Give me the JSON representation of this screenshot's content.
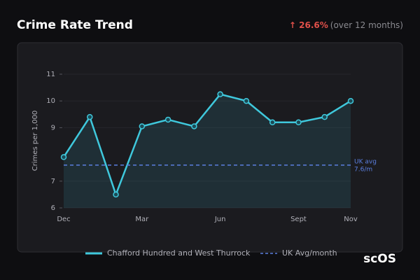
{
  "chart_data": {
    "type": "line",
    "title": "Crime Rate Trend",
    "change": "↑ 26.6%",
    "change_note": "(over 12 months)",
    "y_label": "Crimes per 1,000",
    "categories": [
      "Dec",
      null,
      null,
      "Mar",
      null,
      null,
      "Jun",
      null,
      null,
      "Sept",
      null,
      "Nov"
    ],
    "series": [
      {
        "name": "Chafford Hundred and West Thurrock",
        "color": "#3fc8dc",
        "values": [
          7.9,
          9.4,
          6.5,
          9.05,
          9.3,
          9.05,
          10.25,
          10.0,
          9.2,
          9.2,
          9.4,
          10.0
        ]
      }
    ],
    "reference": {
      "name": "UK Avg/month",
      "value": 7.6,
      "color": "#5b7fe0",
      "annotation": [
        "UK avg",
        "7.6/m"
      ]
    },
    "ylim": [
      6,
      11
    ],
    "yticks": [
      6,
      7,
      9,
      10,
      11
    ],
    "grid": true,
    "watermark": "scOS"
  }
}
